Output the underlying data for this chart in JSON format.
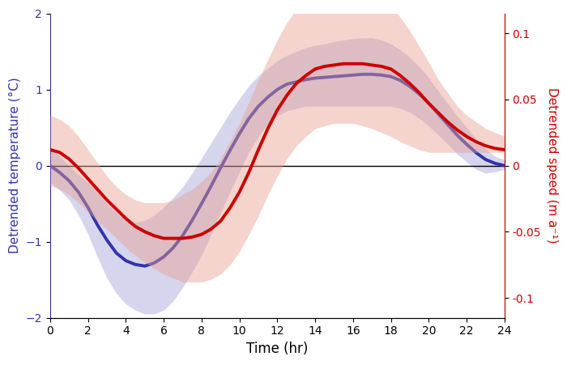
{
  "t": [
    0,
    0.5,
    1,
    1.5,
    2,
    2.5,
    3,
    3.5,
    4,
    4.5,
    5,
    5.5,
    6,
    6.5,
    7,
    7.5,
    8,
    8.5,
    9,
    9.5,
    10,
    10.5,
    11,
    11.5,
    12,
    12.5,
    13,
    13.5,
    14,
    14.5,
    15,
    15.5,
    16,
    16.5,
    17,
    17.5,
    18,
    18.5,
    19,
    19.5,
    20,
    20.5,
    21,
    21.5,
    22,
    22.5,
    23,
    23.5,
    24
  ],
  "temp_mean": [
    0.0,
    -0.09,
    -0.2,
    -0.35,
    -0.55,
    -0.78,
    -0.98,
    -1.15,
    -1.25,
    -1.3,
    -1.32,
    -1.28,
    -1.2,
    -1.08,
    -0.92,
    -0.72,
    -0.5,
    -0.27,
    -0.03,
    0.2,
    0.42,
    0.62,
    0.78,
    0.9,
    1.0,
    1.07,
    1.1,
    1.13,
    1.15,
    1.16,
    1.17,
    1.18,
    1.19,
    1.2,
    1.2,
    1.19,
    1.17,
    1.12,
    1.04,
    0.94,
    0.82,
    0.68,
    0.54,
    0.4,
    0.28,
    0.17,
    0.08,
    0.03,
    0.0
  ],
  "temp_upper": [
    0.22,
    0.12,
    0.0,
    -0.12,
    -0.22,
    -0.35,
    -0.5,
    -0.62,
    -0.72,
    -0.75,
    -0.72,
    -0.65,
    -0.55,
    -0.42,
    -0.28,
    -0.1,
    0.1,
    0.3,
    0.5,
    0.7,
    0.88,
    1.05,
    1.18,
    1.28,
    1.38,
    1.45,
    1.5,
    1.55,
    1.58,
    1.6,
    1.63,
    1.65,
    1.67,
    1.68,
    1.68,
    1.65,
    1.6,
    1.52,
    1.42,
    1.3,
    1.15,
    0.98,
    0.82,
    0.65,
    0.5,
    0.35,
    0.22,
    0.12,
    0.08
  ],
  "temp_lower": [
    -0.22,
    -0.32,
    -0.45,
    -0.65,
    -0.9,
    -1.2,
    -1.48,
    -1.68,
    -1.82,
    -1.9,
    -1.95,
    -1.95,
    -1.9,
    -1.78,
    -1.6,
    -1.4,
    -1.18,
    -0.9,
    -0.62,
    -0.35,
    -0.08,
    0.18,
    0.38,
    0.55,
    0.65,
    0.72,
    0.75,
    0.78,
    0.78,
    0.78,
    0.78,
    0.78,
    0.78,
    0.78,
    0.78,
    0.78,
    0.78,
    0.75,
    0.7,
    0.62,
    0.52,
    0.4,
    0.28,
    0.15,
    0.05,
    -0.05,
    -0.1,
    -0.08,
    -0.05
  ],
  "speed_mean": [
    0.012,
    0.01,
    0.005,
    -0.002,
    -0.01,
    -0.018,
    -0.026,
    -0.033,
    -0.04,
    -0.046,
    -0.05,
    -0.053,
    -0.055,
    -0.055,
    -0.055,
    -0.054,
    -0.052,
    -0.048,
    -0.042,
    -0.032,
    -0.02,
    -0.005,
    0.012,
    0.028,
    0.042,
    0.053,
    0.062,
    0.068,
    0.073,
    0.075,
    0.076,
    0.077,
    0.077,
    0.077,
    0.076,
    0.075,
    0.073,
    0.068,
    0.062,
    0.055,
    0.047,
    0.04,
    0.033,
    0.027,
    0.022,
    0.018,
    0.015,
    0.013,
    0.012
  ],
  "speed_upper": [
    0.038,
    0.035,
    0.03,
    0.022,
    0.012,
    0.002,
    -0.008,
    -0.016,
    -0.022,
    -0.026,
    -0.028,
    -0.028,
    -0.028,
    -0.026,
    -0.022,
    -0.018,
    -0.012,
    -0.005,
    0.005,
    0.018,
    0.032,
    0.048,
    0.065,
    0.08,
    0.095,
    0.108,
    0.118,
    0.125,
    0.13,
    0.132,
    0.133,
    0.133,
    0.132,
    0.13,
    0.128,
    0.125,
    0.12,
    0.112,
    0.102,
    0.09,
    0.078,
    0.065,
    0.055,
    0.045,
    0.038,
    0.033,
    0.028,
    0.025,
    0.022
  ],
  "speed_lower": [
    -0.015,
    -0.018,
    -0.022,
    -0.028,
    -0.035,
    -0.042,
    -0.048,
    -0.055,
    -0.062,
    -0.068,
    -0.073,
    -0.078,
    -0.082,
    -0.085,
    -0.088,
    -0.088,
    -0.088,
    -0.086,
    -0.082,
    -0.075,
    -0.065,
    -0.052,
    -0.038,
    -0.022,
    -0.008,
    0.005,
    0.015,
    0.022,
    0.028,
    0.03,
    0.032,
    0.032,
    0.032,
    0.03,
    0.028,
    0.025,
    0.022,
    0.018,
    0.015,
    0.012,
    0.01,
    0.01,
    0.01,
    0.01,
    0.01,
    0.01,
    0.01,
    0.01,
    0.01
  ],
  "temp_ylim": [
    -2.0,
    2.0
  ],
  "speed_ylim": [
    -0.115,
    0.115
  ],
  "xlim": [
    0,
    24
  ],
  "xticks": [
    0,
    2,
    4,
    6,
    8,
    10,
    12,
    14,
    16,
    18,
    20,
    22,
    24
  ],
  "temp_yticks": [
    -2,
    -1,
    0,
    1,
    2
  ],
  "speed_yticks": [
    -0.1,
    -0.05,
    0,
    0.05,
    0.1
  ],
  "speed_yticklabels": [
    "-0.1",
    "-0.05",
    "0",
    "0.05",
    "0.1"
  ],
  "xlabel": "Time (hr)",
  "ylabel_left": "Detrended temperature (°C)",
  "ylabel_right": "Detrended speed (m a⁻¹)",
  "blue_color": "#3333aa",
  "blue_fill_color": "#8888cc",
  "blue_fill_alpha": 0.35,
  "red_color": "#cc0000",
  "red_fill_color": "#e8a090",
  "red_fill_alpha": 0.45,
  "line_color": "#000000",
  "fig_width": 7.0,
  "fig_height": 4.51,
  "dpi": 100
}
